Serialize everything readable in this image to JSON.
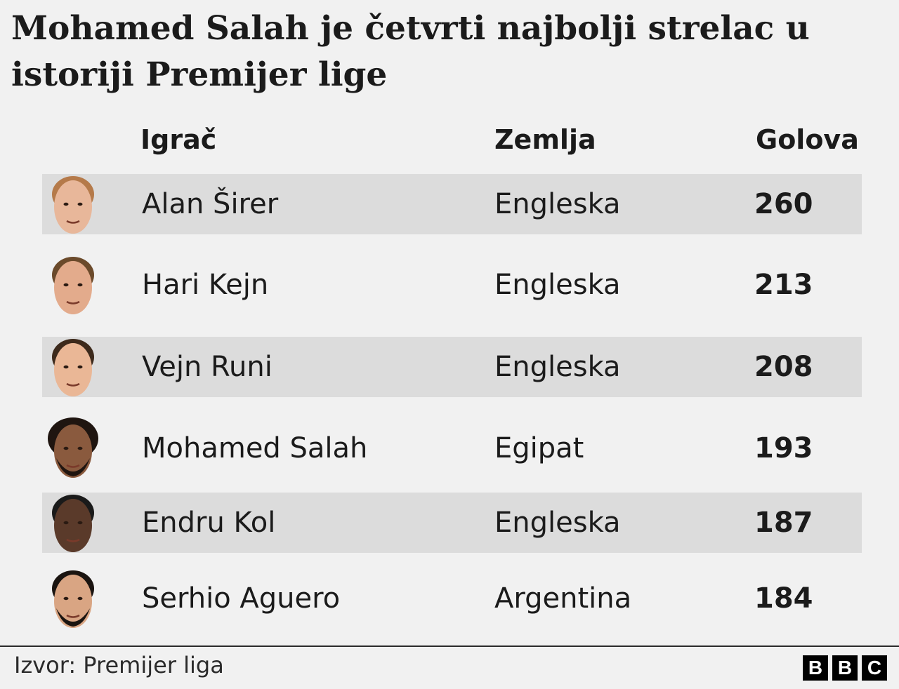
{
  "title": "Mohamed Salah je četvrti najbolji strelac u istoriji Premijer lige",
  "colors": {
    "background": "#f1f1f1",
    "row_shade": "#dcdcdc",
    "text": "#1b1b1b"
  },
  "chart_data": {
    "type": "table",
    "title": "Mohamed Salah je četvrti najbolji strelac u istoriji Premijer lige",
    "columns": [
      "Igrač",
      "Zemlja",
      "Golova"
    ],
    "rows": [
      {
        "player": "Alan Širer",
        "country": "Engleska",
        "goals": "260",
        "icon": "face-photo-icon"
      },
      {
        "player": "Hari Kejn",
        "country": "Engleska",
        "goals": "213",
        "icon": "face-photo-icon"
      },
      {
        "player": "Vejn Runi",
        "country": "Engleska",
        "goals": "208",
        "icon": "face-photo-icon"
      },
      {
        "player": "Mohamed Salah",
        "country": "Egipat",
        "goals": "193",
        "icon": "face-photo-icon"
      },
      {
        "player": "Endru Kol",
        "country": "Engleska",
        "goals": "187",
        "icon": "face-photo-icon"
      },
      {
        "player": "Serhio Aguero",
        "country": "Argentina",
        "goals": "184",
        "icon": "face-photo-icon"
      }
    ]
  },
  "footer": {
    "source": "Izvor: Premijer liga",
    "logo_letters": [
      "B",
      "B",
      "C"
    ]
  }
}
